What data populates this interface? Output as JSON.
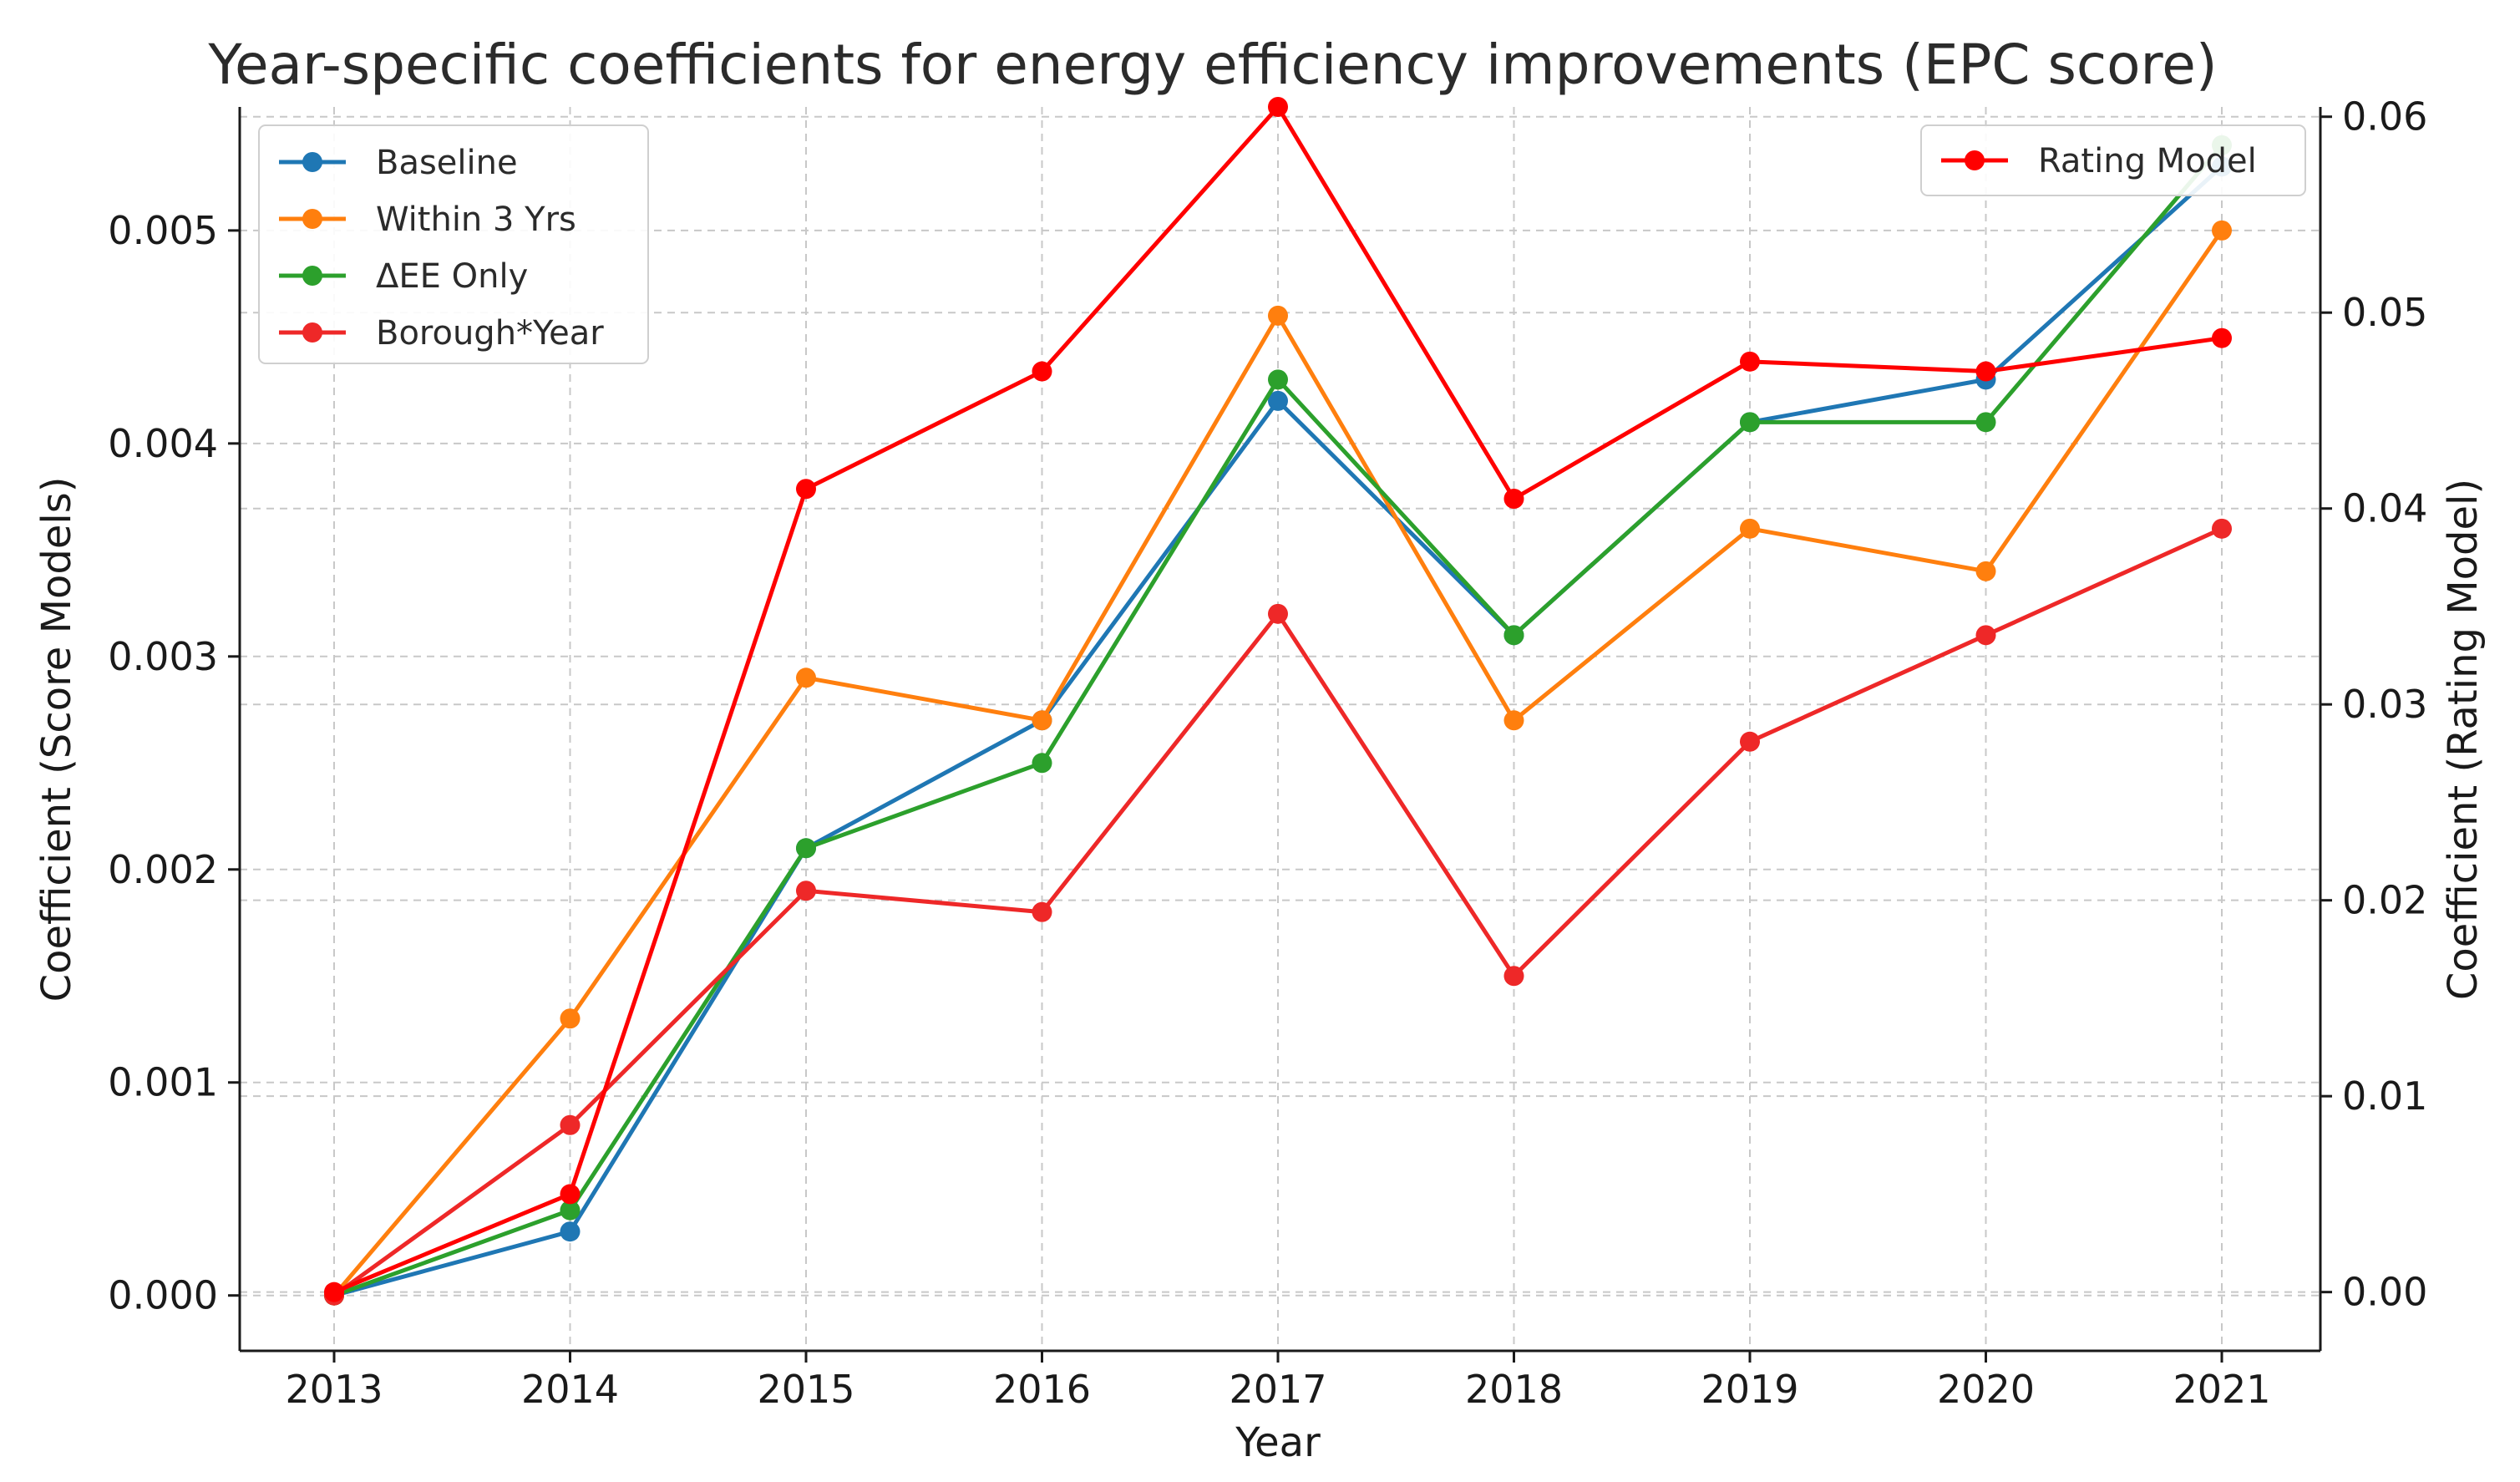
{
  "chart_data": {
    "type": "line",
    "title": "Year-specific coefficients for energy efficiency improvements (EPC score)",
    "xlabel": "Year",
    "ylabel_left": "Coefficient (Score Models)",
    "ylabel_right": "Coefficient (Rating Model)",
    "categories": [
      "2013",
      "2014",
      "2015",
      "2016",
      "2017",
      "2018",
      "2019",
      "2020",
      "2021"
    ],
    "ylim_left": [
      -0.00026,
      0.00558
    ],
    "yticks_left": [
      "0.000",
      "0.001",
      "0.002",
      "0.003",
      "0.004",
      "0.005"
    ],
    "ylim_right": [
      -0.003,
      0.0605
    ],
    "yticks_right": [
      "0.00",
      "0.01",
      "0.02",
      "0.03",
      "0.04",
      "0.05",
      "0.06"
    ],
    "grid": true,
    "series_left": [
      {
        "name": "Baseline",
        "color": "#1f77b4",
        "values": [
          0.0,
          0.0003,
          0.0021,
          0.0027,
          0.0042,
          0.0031,
          0.0041,
          0.0043,
          0.0053
        ]
      },
      {
        "name": "Within 3 Yrs",
        "color": "#ff7f0e",
        "values": [
          0.0,
          0.0013,
          0.0029,
          0.0027,
          0.0046,
          0.0027,
          0.0036,
          0.0034,
          0.005
        ]
      },
      {
        "name": "ΔEE Only",
        "color": "#2ca02c",
        "values": [
          0.0,
          0.0004,
          0.0021,
          0.0025,
          0.0043,
          0.0031,
          0.0041,
          0.0041,
          0.0054
        ]
      },
      {
        "name": "Borough*Year",
        "color": "#ee2828",
        "values": [
          0.0,
          0.0008,
          0.0019,
          0.0018,
          0.0032,
          0.0015,
          0.0026,
          0.0031,
          0.0036
        ]
      }
    ],
    "legend_left_position": "top-left",
    "series_right": [
      {
        "name": "Rating Model",
        "color": "#ff0000",
        "values": [
          0.0,
          0.005,
          0.041,
          0.047,
          0.0605,
          0.0405,
          0.0475,
          0.047,
          0.0487
        ]
      }
    ],
    "legend_right_position": "top-right"
  }
}
